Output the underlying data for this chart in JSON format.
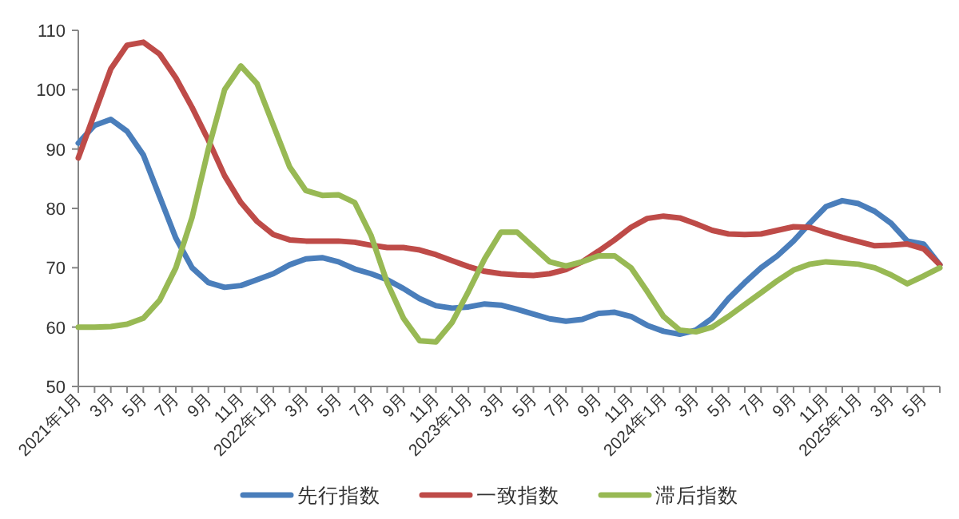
{
  "chart_data": {
    "type": "line",
    "categories": [
      "2021年1月",
      null,
      "3月",
      null,
      "5月",
      null,
      "7月",
      null,
      "9月",
      null,
      "11月",
      null,
      "2022年1月",
      null,
      "3月",
      null,
      "5月",
      null,
      "7月",
      null,
      "9月",
      null,
      "11月",
      null,
      "2023年1月",
      null,
      "3月",
      null,
      "5月",
      null,
      "7月",
      null,
      "9月",
      null,
      "11月",
      null,
      "2024年1月",
      null,
      "3月",
      null,
      "5月",
      null,
      "7月",
      null,
      "9月",
      null,
      "11月",
      null,
      "2025年1月",
      null,
      "3月",
      null,
      "5月",
      null
    ],
    "series": [
      {
        "name": "先行指数",
        "color": "#4a7ebb",
        "values": [
          91,
          94,
          95,
          93,
          89,
          82,
          75,
          70,
          67.5,
          66.7,
          67,
          68,
          69,
          70.5,
          71.5,
          71.7,
          71,
          69.8,
          69,
          68,
          66.5,
          64.8,
          63.6,
          63.2,
          63.4,
          63.9,
          63.7,
          63,
          62.2,
          61.4,
          61,
          61.3,
          62.3,
          62.5,
          61.8,
          60.3,
          59.3,
          58.8,
          59.5,
          61.5,
          64.8,
          67.5,
          70,
          72,
          74.5,
          77.5,
          80.3,
          81.3,
          80.8,
          79.5,
          77.5,
          74.5,
          74,
          70.5
        ]
      },
      {
        "name": "一致指数",
        "color": "#be4b48",
        "values": [
          88.5,
          96,
          103.5,
          107.5,
          108,
          106,
          102,
          97,
          91.5,
          85.5,
          81,
          77.8,
          75.6,
          74.7,
          74.5,
          74.5,
          74.5,
          74.3,
          73.8,
          73.4,
          73.4,
          73,
          72.2,
          71.2,
          70.2,
          69.4,
          69,
          68.8,
          68.7,
          69,
          69.7,
          71,
          72.8,
          74.7,
          76.8,
          78.3,
          78.7,
          78.4,
          77.4,
          76.3,
          75.7,
          75.6,
          75.7,
          76.3,
          76.9,
          76.8,
          75.9,
          75.1,
          74.4,
          73.7,
          73.8,
          74,
          73.2,
          70.5
        ]
      },
      {
        "name": "滞后指数",
        "color": "#98b954",
        "values": [
          60,
          60,
          60.1,
          60.5,
          61.5,
          64.5,
          70,
          78.5,
          90,
          100,
          104,
          101,
          94,
          87,
          83,
          82.2,
          82.3,
          81,
          75.5,
          67.5,
          61.5,
          57.7,
          57.5,
          60.8,
          66,
          71.5,
          76,
          76,
          73.5,
          71,
          70.3,
          71,
          72,
          72,
          70,
          66,
          61.8,
          59.5,
          59.2,
          60,
          61.8,
          63.8,
          65.8,
          67.8,
          69.6,
          70.6,
          71,
          70.8,
          70.6,
          70,
          68.8,
          67.3,
          68.6,
          70
        ]
      }
    ],
    "ylim": [
      50,
      110
    ],
    "yticks": [
      50,
      60,
      70,
      80,
      90,
      100,
      110
    ],
    "grid": false,
    "legend": "bottom",
    "marker": "none",
    "line_style": "solid"
  }
}
